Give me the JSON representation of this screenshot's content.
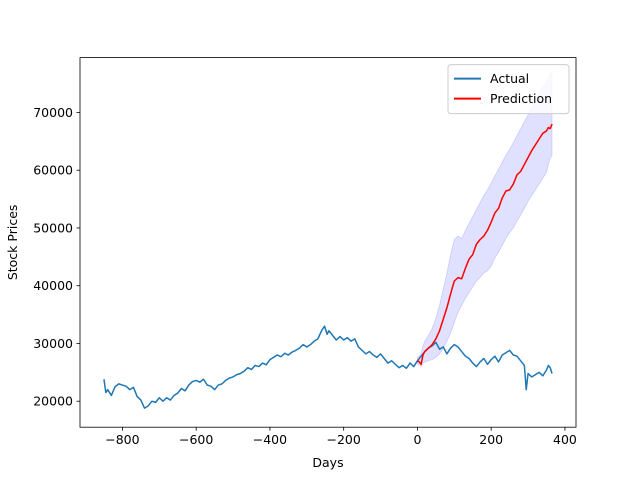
{
  "chart_data": {
    "type": "line",
    "title": "",
    "xlabel": "Days",
    "ylabel": "Stock Prices",
    "xlim": [
      -915,
      430
    ],
    "ylim": [
      15500,
      79500
    ],
    "xticks": [
      -800,
      -600,
      -400,
      -200,
      0,
      200,
      400
    ],
    "xtick_labels": [
      "−800",
      "−600",
      "−400",
      "−200",
      "0",
      "200",
      "400"
    ],
    "yticks": [
      20000,
      30000,
      40000,
      50000,
      60000,
      70000
    ],
    "ytick_labels": [
      "20000",
      "30000",
      "40000",
      "50000",
      "60000",
      "70000"
    ],
    "grid": false,
    "legend": {
      "placement": "top-right"
    },
    "series": [
      {
        "name": "Actual",
        "color": "#1f77b4",
        "x": [
          -850,
          -845,
          -840,
          -830,
          -820,
          -810,
          -800,
          -790,
          -780,
          -770,
          -760,
          -750,
          -740,
          -730,
          -720,
          -710,
          -700,
          -690,
          -680,
          -670,
          -660,
          -650,
          -640,
          -630,
          -620,
          -610,
          -600,
          -590,
          -580,
          -570,
          -560,
          -550,
          -540,
          -530,
          -520,
          -510,
          -500,
          -490,
          -480,
          -470,
          -460,
          -450,
          -440,
          -430,
          -420,
          -410,
          -400,
          -390,
          -380,
          -370,
          -360,
          -350,
          -340,
          -330,
          -320,
          -310,
          -300,
          -290,
          -280,
          -270,
          -260,
          -252,
          -245,
          -240,
          -230,
          -220,
          -210,
          -200,
          -190,
          -180,
          -170,
          -160,
          -150,
          -140,
          -130,
          -120,
          -110,
          -100,
          -90,
          -80,
          -70,
          -60,
          -50,
          -40,
          -30,
          -20,
          -10,
          0,
          10,
          20,
          30,
          40,
          50,
          60,
          70,
          80,
          90,
          100,
          110,
          120,
          130,
          140,
          150,
          160,
          170,
          180,
          190,
          200,
          210,
          220,
          230,
          240,
          250,
          260,
          270,
          280,
          290,
          295,
          300,
          310,
          320,
          330,
          340,
          350,
          355,
          360,
          365
        ],
        "y": [
          23800,
          21500,
          22000,
          21000,
          22500,
          23000,
          22800,
          22600,
          22000,
          22400,
          20800,
          20200,
          18800,
          19200,
          20000,
          19800,
          20600,
          20000,
          20600,
          20200,
          21000,
          21400,
          22200,
          21800,
          22800,
          23400,
          23600,
          23300,
          23800,
          22800,
          22600,
          22000,
          22800,
          23000,
          23600,
          24000,
          24200,
          24600,
          24800,
          25200,
          25800,
          25500,
          26200,
          26000,
          26600,
          26300,
          27200,
          27600,
          28000,
          27700,
          28300,
          28000,
          28500,
          28800,
          29200,
          29800,
          29400,
          29800,
          30400,
          30800,
          32200,
          33000,
          31600,
          32200,
          31400,
          30600,
          31200,
          30600,
          31000,
          30400,
          30800,
          29400,
          28800,
          28200,
          28600,
          28000,
          27600,
          28200,
          27400,
          26600,
          27000,
          26400,
          25800,
          26200,
          25700,
          26600,
          26000,
          27000,
          27800,
          28600,
          29200,
          29600,
          30200,
          29000,
          29400,
          28200,
          29200,
          29800,
          29400,
          28600,
          27800,
          27400,
          26600,
          26000,
          26800,
          27400,
          26400,
          27200,
          27800,
          26800,
          28000,
          28400,
          28800,
          28000,
          27800,
          27000,
          26200,
          22000,
          24800,
          24200,
          24600,
          25000,
          24400,
          25400,
          26200,
          25800,
          24800
        ]
      },
      {
        "name": "Prediction",
        "color": "#ff0000",
        "x": [
          0,
          5,
          10,
          15,
          20,
          30,
          40,
          50,
          60,
          70,
          80,
          90,
          100,
          110,
          120,
          130,
          140,
          150,
          160,
          170,
          180,
          190,
          200,
          210,
          220,
          230,
          240,
          250,
          260,
          270,
          280,
          290,
          300,
          310,
          320,
          330,
          340,
          350,
          355,
          360,
          365
        ],
        "y": [
          27000,
          26800,
          26400,
          28000,
          28600,
          29200,
          29800,
          30800,
          32200,
          34200,
          36200,
          38600,
          40800,
          41400,
          41200,
          43000,
          44600,
          45400,
          47200,
          48000,
          48600,
          49600,
          51000,
          52600,
          53400,
          55200,
          56400,
          56600,
          57600,
          59200,
          59800,
          61000,
          62200,
          63400,
          64400,
          65400,
          66400,
          66800,
          67400,
          67200,
          68000
        ]
      }
    ],
    "confidence_band": {
      "name": "",
      "color": "#0000ff",
      "opacity": 0.12,
      "x": [
        0,
        5,
        10,
        15,
        20,
        30,
        40,
        50,
        60,
        70,
        80,
        90,
        100,
        110,
        120,
        130,
        140,
        150,
        160,
        170,
        180,
        190,
        200,
        210,
        220,
        230,
        240,
        250,
        260,
        270,
        280,
        290,
        300,
        310,
        320,
        330,
        340,
        350,
        355,
        360,
        365
      ],
      "lower": [
        26500,
        26300,
        26000,
        26600,
        26800,
        27000,
        27200,
        27600,
        28200,
        29200,
        30400,
        31800,
        33600,
        35400,
        36600,
        37800,
        38800,
        39800,
        40800,
        41400,
        42200,
        42600,
        43400,
        44800,
        45800,
        47000,
        48200,
        49200,
        50000,
        51200,
        52200,
        53400,
        54600,
        55600,
        56600,
        57600,
        58600,
        59600,
        61000,
        62000,
        62600
      ],
      "upper": [
        27600,
        27800,
        28200,
        29600,
        30400,
        31400,
        32600,
        34400,
        36600,
        39400,
        42200,
        45400,
        48000,
        48600,
        48200,
        49600,
        50800,
        52000,
        53200,
        54400,
        55600,
        56600,
        57800,
        59000,
        60200,
        61400,
        62600,
        63600,
        64800,
        66000,
        67200,
        68400,
        69600,
        70800,
        72000,
        73200,
        74400,
        75200,
        76000,
        76600,
        77000
      ]
    }
  }
}
